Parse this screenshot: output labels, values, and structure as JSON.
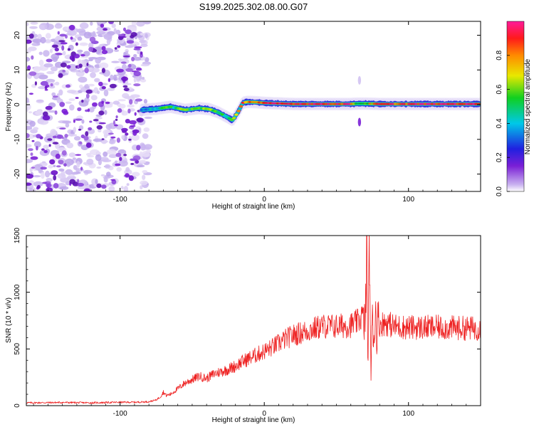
{
  "title": "S199.2025.302.08.00.G07",
  "chart_data": [
    {
      "type": "heatmap",
      "title": "S199.2025.302.08.00.G07",
      "xlabel": "Height of straight line (km)",
      "ylabel": "Frequency (Hz)",
      "xlim": [
        -165,
        150
      ],
      "ylim": [
        -25,
        24
      ],
      "xticks": [
        -100,
        0,
        100
      ],
      "xtick_labels": [
        "-100",
        "0",
        "100"
      ],
      "yticks": [
        -20,
        -10,
        0,
        10,
        20
      ],
      "ytick_labels": [
        "-20",
        "-10",
        "0",
        "10",
        "20"
      ],
      "noise_region_x": [
        -165,
        -83
      ],
      "ridge": {
        "x": [
          -85,
          -75,
          -65,
          -55,
          -45,
          -38,
          -32,
          -26,
          -22,
          -18,
          -15,
          -12,
          -5,
          0,
          20,
          40,
          60,
          65,
          70,
          80,
          100,
          120,
          150
        ],
        "freq_hz": [
          -1.5,
          -1.2,
          -0.6,
          -1.5,
          -1.0,
          -1.3,
          -2.2,
          -3.5,
          -4.5,
          -2.0,
          0.5,
          0.8,
          0.7,
          0.5,
          0.2,
          0.2,
          0.2,
          0.3,
          0.3,
          0.2,
          0.2,
          0.2,
          0.2
        ],
        "amplitude": [
          0.4,
          0.45,
          0.5,
          0.6,
          0.55,
          0.6,
          0.55,
          0.5,
          0.55,
          0.7,
          0.8,
          0.85,
          0.8,
          0.85,
          0.95,
          0.95,
          0.9,
          0.5,
          0.6,
          0.85,
          0.9,
          0.95,
          0.95
        ]
      },
      "colorbar": {
        "label": "Normalized spectral amplitude",
        "range": [
          0,
          1
        ],
        "ticks": [
          0.0,
          0.2,
          0.4,
          0.6,
          0.8
        ],
        "tick_labels": [
          "0.0",
          "0.2",
          "0.4",
          "0.6",
          "0.8"
        ]
      }
    },
    {
      "type": "line",
      "xlabel": "Height of straight line (km)",
      "ylabel": "SNR (10 * v/v)",
      "xlim": [
        -165,
        150
      ],
      "ylim": [
        0,
        1500
      ],
      "xticks": [
        -100,
        0,
        100
      ],
      "xtick_labels": [
        "-100",
        "0",
        "100"
      ],
      "yticks": [
        0,
        500,
        1000,
        1500
      ],
      "ytick_labels": [
        "0",
        "500",
        "1000",
        "1500"
      ],
      "series": [
        {
          "name": "SNR",
          "color": "#ee2222",
          "x": [
            -165,
            -140,
            -120,
            -100,
            -90,
            -80,
            -75,
            -72,
            -70,
            -68,
            -65,
            -60,
            -55,
            -50,
            -45,
            -40,
            -35,
            -30,
            -25,
            -20,
            -15,
            -10,
            -5,
            0,
            5,
            10,
            15,
            20,
            25,
            30,
            35,
            40,
            50,
            60,
            65,
            68,
            70,
            71,
            72,
            73,
            74,
            75,
            76,
            77,
            78,
            80,
            85,
            90,
            100,
            120,
            150
          ],
          "y": [
            25,
            28,
            25,
            30,
            30,
            35,
            50,
            80,
            120,
            90,
            100,
            150,
            200,
            230,
            260,
            240,
            280,
            300,
            320,
            350,
            390,
            420,
            450,
            480,
            510,
            550,
            590,
            620,
            640,
            660,
            680,
            700,
            700,
            710,
            740,
            800,
            700,
            1400,
            400,
            1500,
            200,
            900,
            600,
            800,
            700,
            720,
            730,
            700,
            690,
            690,
            680
          ]
        }
      ]
    }
  ],
  "colors": {
    "line": "#ee2222",
    "noise": "#7a1fd6",
    "axis": "#000000"
  }
}
